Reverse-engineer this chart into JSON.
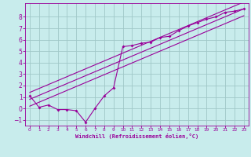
{
  "title": "",
  "xlabel": "Windchill (Refroidissement éolien,°C)",
  "bg_color": "#c8ecec",
  "grid_color": "#a0c8c8",
  "line_color": "#990099",
  "xlim": [
    -0.5,
    23.5
  ],
  "ylim": [
    -1.5,
    9.2
  ],
  "xticks": [
    0,
    1,
    2,
    3,
    4,
    5,
    6,
    7,
    8,
    9,
    10,
    11,
    12,
    13,
    14,
    15,
    16,
    17,
    18,
    19,
    20,
    21,
    22,
    23
  ],
  "yticks": [
    -1,
    0,
    1,
    2,
    3,
    4,
    5,
    6,
    7,
    8
  ],
  "scatter_x": [
    0,
    1,
    2,
    3,
    4,
    5,
    6,
    7,
    8,
    9,
    10,
    11,
    12,
    13,
    14,
    15,
    16,
    17,
    18,
    19,
    20,
    21,
    22,
    23
  ],
  "scatter_y": [
    1.1,
    0.1,
    0.3,
    -0.1,
    -0.1,
    -0.2,
    -1.2,
    0.0,
    1.1,
    1.8,
    5.4,
    5.5,
    5.7,
    5.8,
    6.2,
    6.3,
    6.8,
    7.2,
    7.5,
    7.8,
    8.0,
    8.4,
    8.5,
    8.7
  ],
  "line1_x": [
    0,
    23
  ],
  "line1_y": [
    0.8,
    8.7
  ],
  "line2_x": [
    0,
    23
  ],
  "line2_y": [
    0.2,
    8.1
  ],
  "line3_x": [
    0,
    23
  ],
  "line3_y": [
    1.4,
    9.3
  ]
}
